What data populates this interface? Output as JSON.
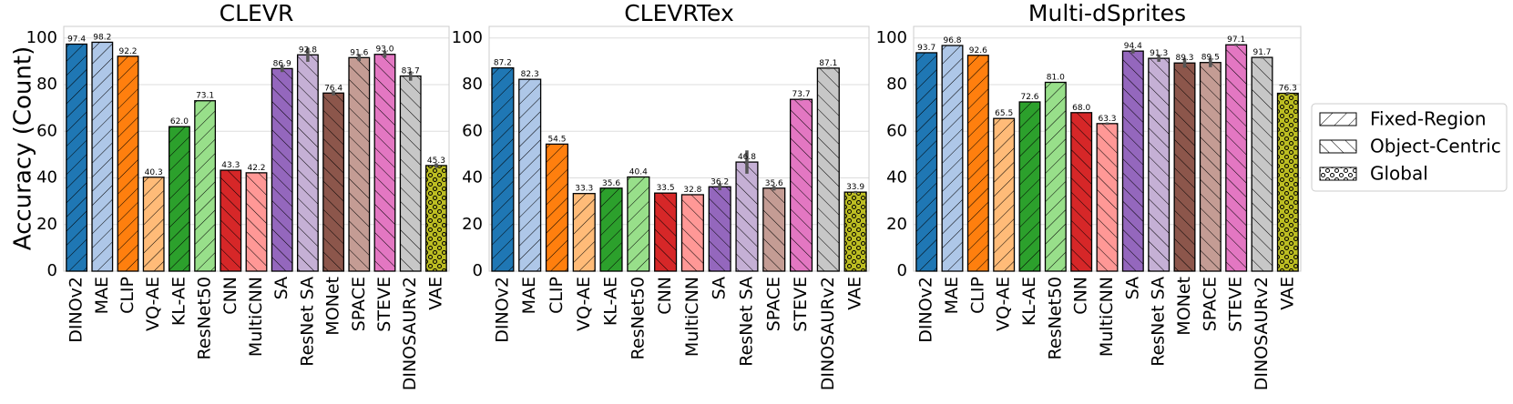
{
  "ylabel": "Accuracy (Count)",
  "legend": {
    "placement": "right",
    "entries": [
      {
        "label": "Fixed-Region",
        "pattern": "hatch-forward"
      },
      {
        "label": "Object-Centric",
        "pattern": "hatch-backward"
      },
      {
        "label": "Global",
        "pattern": "circles"
      }
    ]
  },
  "chart_data": [
    {
      "type": "bar",
      "title": "CLEVR",
      "categories": [
        "DINOv2",
        "MAE",
        "CLIP",
        "VQ-AE",
        "KL-AE",
        "ResNet50",
        "CNN",
        "MultiCNN",
        "SA",
        "ResNet SA",
        "MONet",
        "SPACE",
        "STEVE",
        "DINOSAURv2",
        "VAE"
      ],
      "values": [
        97.4,
        98.2,
        92.2,
        40.3,
        62.0,
        73.1,
        43.3,
        42.2,
        86.9,
        92.8,
        76.4,
        91.6,
        93.0,
        83.7,
        45.3
      ],
      "value_labels": [
        "97.4",
        "98.2",
        "92.2",
        "40.3",
        "62.0",
        "73.1",
        "43.3",
        "42.2",
        "86.9",
        "92.8",
        "76.4",
        "91.6",
        "93.0",
        "83.7",
        "45.3"
      ],
      "error_bars": [
        0,
        0,
        0,
        0,
        0,
        0,
        0,
        0,
        1.5,
        3.0,
        1.0,
        1.5,
        1.5,
        2.0,
        1.0
      ],
      "ylim": [
        0,
        105
      ],
      "yticks": [
        "0",
        "20",
        "40",
        "60",
        "80",
        "100"
      ],
      "grid": "horizontal"
    },
    {
      "type": "bar",
      "title": "CLEVRTex",
      "categories": [
        "DINOv2",
        "MAE",
        "CLIP",
        "VQ-AE",
        "KL-AE",
        "ResNet50",
        "CNN",
        "MultiCNN",
        "SA",
        "ResNet SA",
        "SPACE",
        "STEVE",
        "DINOSAURv2",
        "VAE"
      ],
      "values": [
        87.2,
        82.3,
        54.5,
        33.3,
        35.6,
        40.4,
        33.5,
        32.8,
        36.2,
        46.8,
        35.6,
        73.7,
        87.1,
        33.9
      ],
      "value_labels": [
        "87.2",
        "82.3",
        "54.5",
        "33.3",
        "35.6",
        "40.4",
        "33.5",
        "32.8",
        "36.2",
        "46.8",
        "35.6",
        "73.7",
        "87.1",
        "33.9"
      ],
      "error_bars": [
        0,
        0,
        0,
        0,
        0,
        0,
        0,
        0,
        1.5,
        5.0,
        1.0,
        0.5,
        0.5,
        0.5
      ],
      "ylim": [
        0,
        105
      ],
      "yticks": [
        "0",
        "20",
        "40",
        "60",
        "80",
        "100"
      ],
      "grid": "horizontal"
    },
    {
      "type": "bar",
      "title": "Multi-dSprites",
      "categories": [
        "DINOv2",
        "MAE",
        "CLIP",
        "VQ-AE",
        "KL-AE",
        "ResNet50",
        "CNN",
        "MultiCNN",
        "SA",
        "ResNet SA",
        "MONet",
        "SPACE",
        "STEVE",
        "DINOSAURv2",
        "VAE"
      ],
      "values": [
        93.7,
        96.8,
        92.6,
        65.5,
        72.6,
        81.0,
        68.0,
        63.3,
        94.4,
        91.3,
        89.3,
        89.5,
        97.1,
        91.7,
        76.3
      ],
      "value_labels": [
        "93.7",
        "96.8",
        "92.6",
        "65.5",
        "72.6",
        "81.0",
        "68.0",
        "63.3",
        "94.4",
        "91.3",
        "89.3",
        "89.5",
        "97.1",
        "91.7",
        "76.3"
      ],
      "error_bars": [
        0,
        0,
        0,
        0,
        0,
        0,
        0,
        0.5,
        1.0,
        1.5,
        2.0,
        2.0,
        0.5,
        0.5,
        0.5
      ],
      "ylim": [
        0,
        105
      ],
      "yticks": [
        "0",
        "20",
        "40",
        "60",
        "80",
        "100"
      ],
      "grid": "horizontal"
    }
  ],
  "colors": {
    "DINOv2": "#1f77b4",
    "MAE": "#aec7e8",
    "CLIP": "#ff7f0e",
    "VQ-AE": "#ffbb78",
    "KL-AE": "#2ca02c",
    "ResNet50": "#98df8a",
    "CNN": "#d62728",
    "MultiCNN": "#ff9896",
    "SA": "#9467bd",
    "ResNet SA": "#c5b0d5",
    "MONet": "#8c564b",
    "SPACE": "#c49c94",
    "STEVE": "#e377c2",
    "DINOSAURv2": "#c7c7c7",
    "VAE": "#bcbd22"
  },
  "patterns": {
    "DINOv2": "forward",
    "MAE": "forward",
    "CLIP": "forward",
    "VQ-AE": "forward",
    "KL-AE": "forward",
    "ResNet50": "forward",
    "CNN": "backward",
    "MultiCNN": "backward",
    "SA": "backward",
    "ResNet SA": "backward",
    "MONet": "backward",
    "SPACE": "backward",
    "STEVE": "backward",
    "DINOSAURv2": "backward",
    "VAE": "circles"
  },
  "colors_meta": {
    "grid": "#dddddd",
    "axis": "#cccccc",
    "edge": "#000000",
    "errorbar": "#555555"
  }
}
